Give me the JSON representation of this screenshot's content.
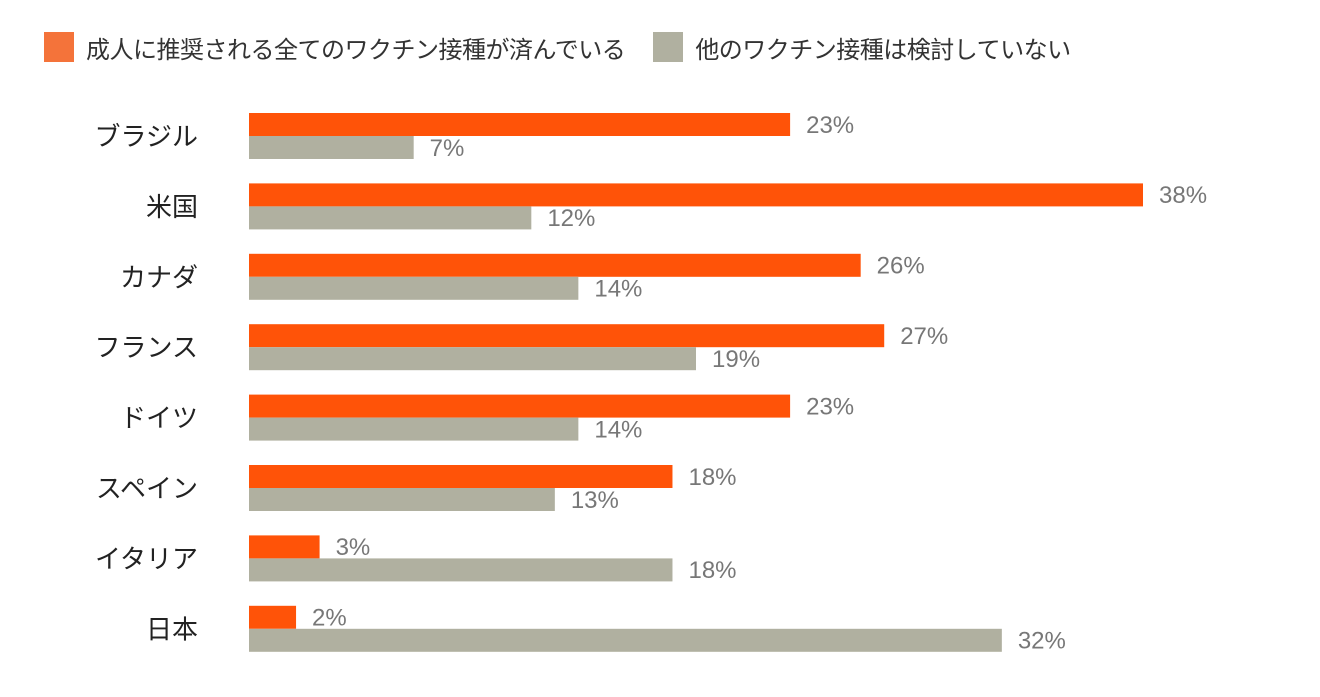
{
  "legend": {
    "series1": "成人に推奨される全てのワクチン接種が済んでいる",
    "series2": "他のワクチン接種は検討していない"
  },
  "colors": {
    "series1": "#ff5308",
    "series2": "#b0b0a0",
    "series1_swatch": "#f4733a"
  },
  "chart_data": {
    "type": "bar",
    "orientation": "horizontal",
    "title": "",
    "xlabel": "",
    "ylabel": "",
    "xlim": [
      0,
      38
    ],
    "grid": false,
    "legend_position": "top-left",
    "categories": [
      "ブラジル",
      "米国",
      "カナダ",
      "フランス",
      "ドイツ",
      "スペイン",
      "イタリア",
      "日本"
    ],
    "series": [
      {
        "name": "成人に推奨される全てのワクチン接種が済んでいる",
        "values": [
          23,
          38,
          26,
          27,
          23,
          18,
          3,
          2
        ]
      },
      {
        "name": "他のワクチン接種は検討していない",
        "values": [
          7,
          12,
          14,
          19,
          14,
          13,
          18,
          32
        ]
      }
    ],
    "value_suffix": "%"
  }
}
